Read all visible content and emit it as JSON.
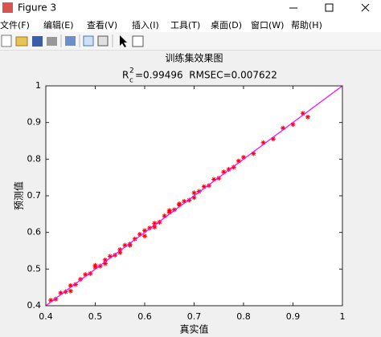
{
  "window": {
    "title": "Figure 3",
    "menu": [
      "文件(F)",
      "编辑(E)",
      "查看(V)",
      "插入(I)",
      "工具(T)",
      "桌面(D)",
      "窗口(W)",
      "帮助(H)"
    ]
  },
  "chart_data": {
    "type": "scatter",
    "title": "训练集效果图",
    "subtitle": {
      "base": "R",
      "sup": "2",
      "sub": "c",
      "text": "=0.99496  RMSEC=0.007622"
    },
    "xlabel": "真实值",
    "ylabel": "预测值",
    "xlim": [
      0.4,
      1
    ],
    "ylim": [
      0.4,
      1
    ],
    "xticks": [
      0.4,
      0.5,
      0.6,
      0.7,
      0.8,
      0.9,
      1
    ],
    "yticks": [
      0.4,
      0.5,
      0.6,
      0.7,
      0.8,
      0.9,
      1
    ],
    "color": "#ff0000",
    "x": [
      0.41,
      0.42,
      0.43,
      0.44,
      0.45,
      0.46,
      0.47,
      0.48,
      0.49,
      0.5,
      0.51,
      0.52,
      0.53,
      0.54,
      0.55,
      0.56,
      0.57,
      0.58,
      0.59,
      0.6,
      0.61,
      0.62,
      0.63,
      0.64,
      0.65,
      0.66,
      0.67,
      0.68,
      0.69,
      0.7,
      0.71,
      0.72,
      0.73,
      0.74,
      0.75,
      0.76,
      0.77,
      0.78,
      0.79,
      0.8,
      0.82,
      0.84,
      0.86,
      0.88,
      0.9,
      0.92,
      0.93,
      0.45,
      0.5,
      0.55,
      0.6,
      0.65,
      0.7,
      0.52,
      0.57,
      0.62,
      0.67
    ],
    "values": [
      0.415,
      0.418,
      0.435,
      0.438,
      0.455,
      0.458,
      0.472,
      0.485,
      0.488,
      0.505,
      0.508,
      0.515,
      0.535,
      0.538,
      0.553,
      0.565,
      0.568,
      0.582,
      0.595,
      0.605,
      0.612,
      0.625,
      0.628,
      0.645,
      0.655,
      0.662,
      0.678,
      0.685,
      0.688,
      0.708,
      0.712,
      0.725,
      0.728,
      0.745,
      0.748,
      0.765,
      0.772,
      0.778,
      0.795,
      0.805,
      0.815,
      0.845,
      0.855,
      0.885,
      0.895,
      0.925,
      0.915,
      0.44,
      0.51,
      0.545,
      0.59,
      0.66,
      0.695,
      0.525,
      0.565,
      0.615,
      0.675
    ],
    "fit": {
      "x": [
        0.4,
        1
      ],
      "values": [
        0.4,
        1
      ],
      "color": "#ff00ff"
    }
  }
}
